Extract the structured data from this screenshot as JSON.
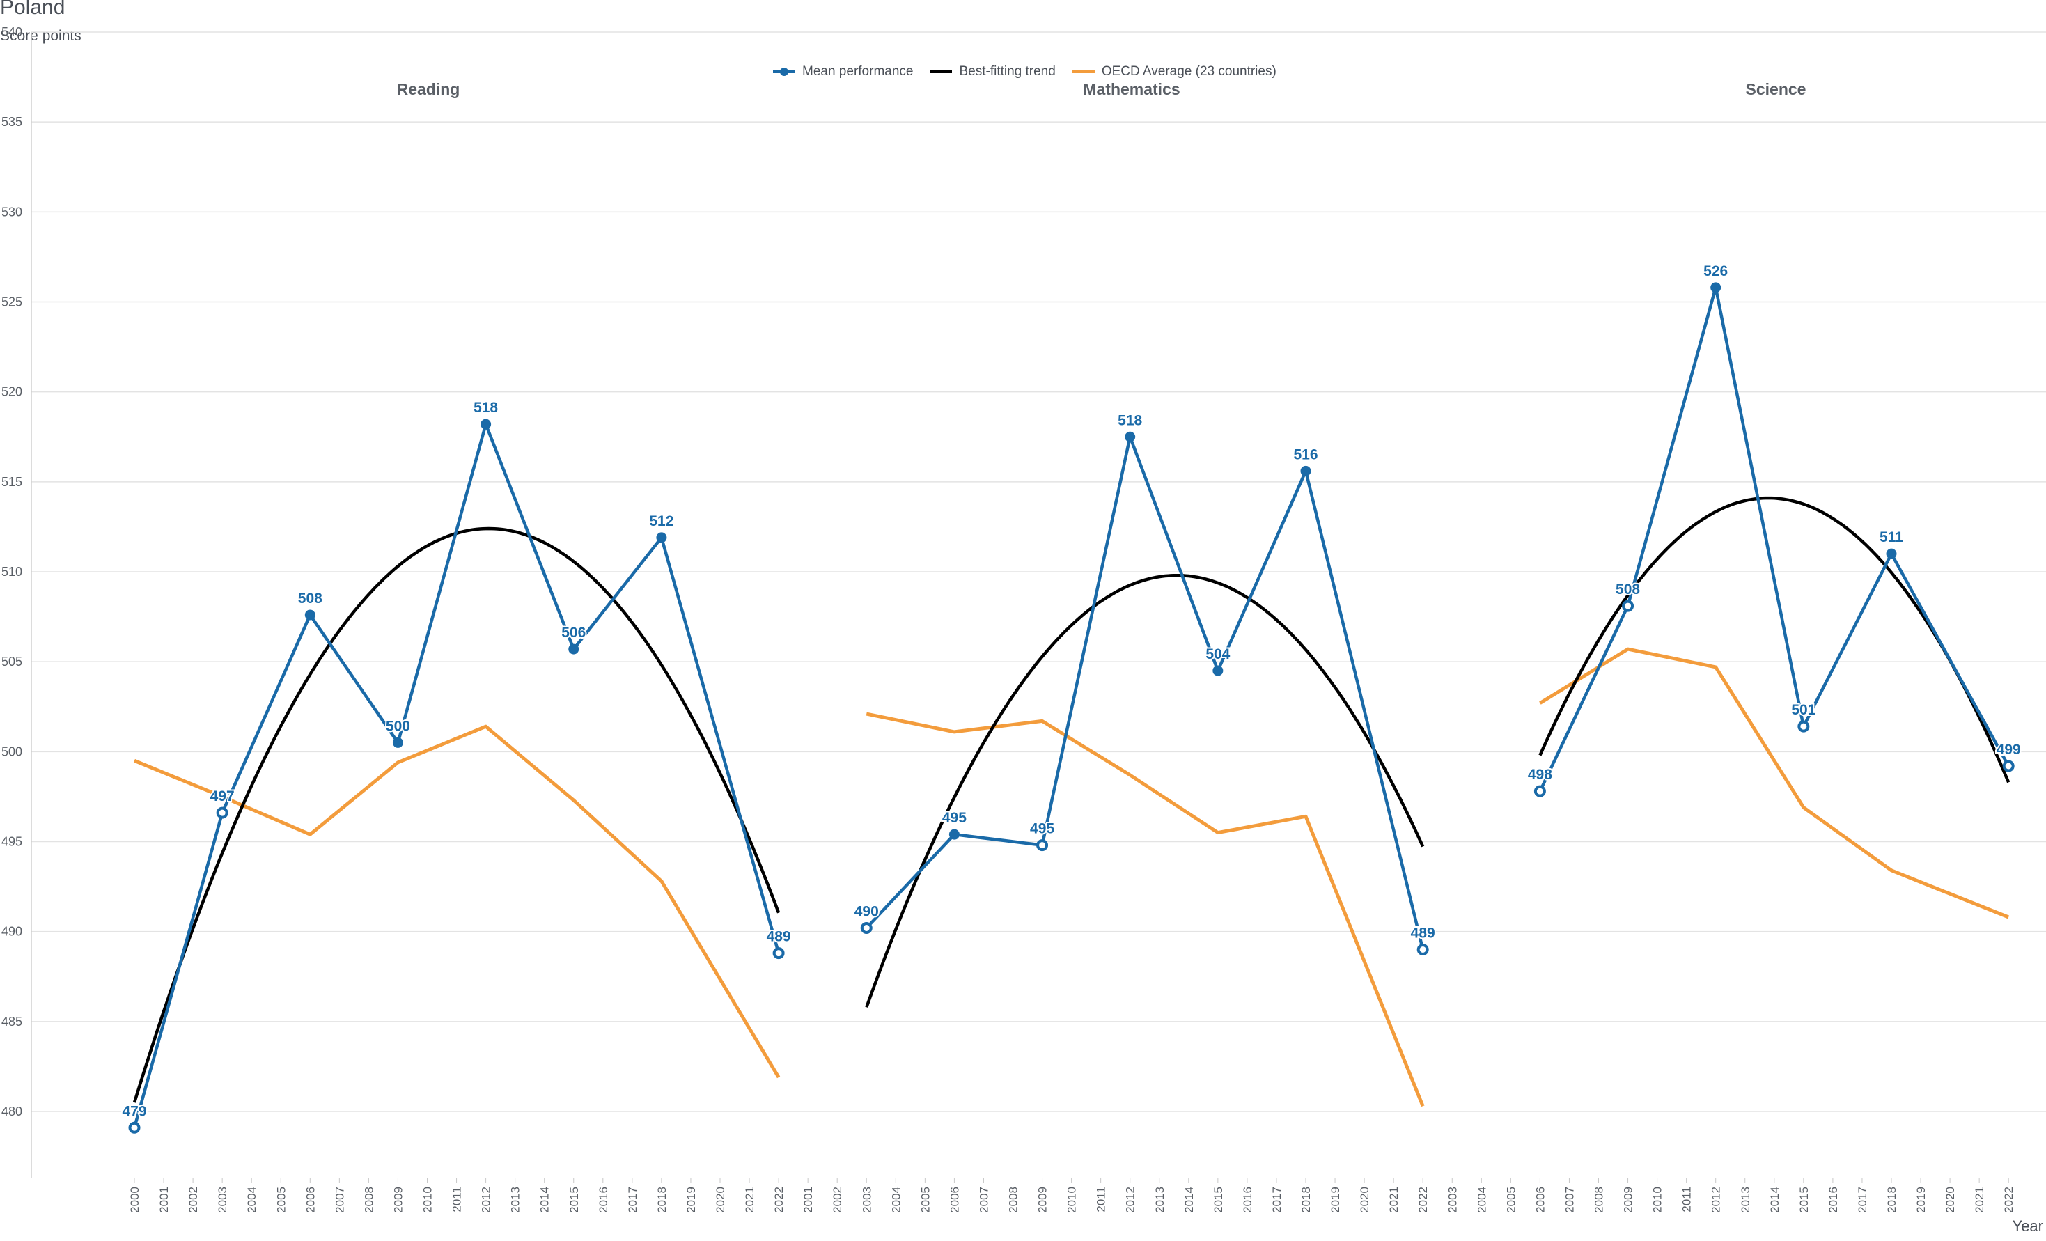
{
  "chart_data": {
    "type": "line",
    "title": "Poland",
    "ylabel": "Score points",
    "xlabel": "Year",
    "ylim": [
      477,
      540
    ],
    "yticks": [
      480,
      485,
      490,
      495,
      500,
      505,
      510,
      515,
      520,
      525,
      530,
      535,
      540
    ],
    "x_axis_years": [
      "2000",
      "2001",
      "2002",
      "2003",
      "2004",
      "2005",
      "2006",
      "2007",
      "2008",
      "2009",
      "2010",
      "2011",
      "2012",
      "2013",
      "2014",
      "2015",
      "2016",
      "2017",
      "2018",
      "2019",
      "2020",
      "2021",
      "2022",
      "2001",
      "2002",
      "2003",
      "2004",
      "2005",
      "2006",
      "2007",
      "2008",
      "2009",
      "2010",
      "2011",
      "2012",
      "2013",
      "2014",
      "2015",
      "2016",
      "2017",
      "2018",
      "2019",
      "2020",
      "2021",
      "2022",
      "2003",
      "2004",
      "2005",
      "2006",
      "2007",
      "2008",
      "2009",
      "2010",
      "2011",
      "2012",
      "2013",
      "2014",
      "2015",
      "2016",
      "2017",
      "2018",
      "2019",
      "2020",
      "2021",
      "2022"
    ],
    "legend": [
      {
        "name": "Mean performance",
        "color": "#1a6aa8"
      },
      {
        "name": "Best-fitting trend",
        "color": "#000000"
      },
      {
        "name": "OECD Average (23 countries)",
        "color": "#f39c3c"
      }
    ],
    "panels": [
      {
        "name": "Reading",
        "start_index": 0,
        "mean": [
          {
            "year": 2000,
            "value": 479.1,
            "label": "479",
            "marker": "open"
          },
          {
            "year": 2003,
            "value": 496.6,
            "label": "497",
            "marker": "open"
          },
          {
            "year": 2006,
            "value": 507.6,
            "label": "508",
            "marker": "filled"
          },
          {
            "year": 2009,
            "value": 500.5,
            "label": "500",
            "marker": "filled"
          },
          {
            "year": 2012,
            "value": 518.2,
            "label": "518",
            "marker": "filled"
          },
          {
            "year": 2015,
            "value": 505.7,
            "label": "506",
            "marker": "filled"
          },
          {
            "year": 2018,
            "value": 511.9,
            "label": "512",
            "marker": "filled"
          },
          {
            "year": 2022,
            "value": 488.8,
            "label": "489",
            "marker": "open"
          }
        ],
        "oecd": [
          {
            "year": 2000,
            "value": 499.5
          },
          {
            "year": 2003,
            "value": 497.5
          },
          {
            "year": 2006,
            "value": 495.4
          },
          {
            "year": 2009,
            "value": 499.4
          },
          {
            "year": 2012,
            "value": 501.4
          },
          {
            "year": 2015,
            "value": 497.3
          },
          {
            "year": 2018,
            "value": 492.8
          },
          {
            "year": 2022,
            "value": 481.9
          }
        ],
        "trend": {
          "from": 2000,
          "to": 2022,
          "peak_year": 2012.1,
          "peak_value": 512.4,
          "start_value": 480.5
        }
      },
      {
        "name": "Mathematics",
        "start_index": 25,
        "mean": [
          {
            "year": 2003,
            "value": 490.2,
            "label": "490",
            "marker": "open"
          },
          {
            "year": 2006,
            "value": 495.4,
            "label": "495",
            "marker": "filled"
          },
          {
            "year": 2009,
            "value": 494.8,
            "label": "495",
            "marker": "open"
          },
          {
            "year": 2012,
            "value": 517.5,
            "label": "518",
            "marker": "filled"
          },
          {
            "year": 2015,
            "value": 504.5,
            "label": "504",
            "marker": "filled"
          },
          {
            "year": 2018,
            "value": 515.6,
            "label": "516",
            "marker": "filled"
          },
          {
            "year": 2022,
            "value": 489.0,
            "label": "489",
            "marker": "open"
          }
        ],
        "oecd": [
          {
            "year": 2003,
            "value": 502.1
          },
          {
            "year": 2006,
            "value": 501.1
          },
          {
            "year": 2009,
            "value": 501.7
          },
          {
            "year": 2012,
            "value": 498.7
          },
          {
            "year": 2015,
            "value": 495.5
          },
          {
            "year": 2018,
            "value": 496.4
          },
          {
            "year": 2022,
            "value": 480.3
          }
        ],
        "trend": {
          "from": 2003,
          "to": 2022,
          "peak_year": 2013.6,
          "peak_value": 509.8,
          "start_value": 485.8
        }
      },
      {
        "name": "Science",
        "start_index": 48,
        "mean": [
          {
            "year": 2006,
            "value": 497.8,
            "label": "498",
            "marker": "open"
          },
          {
            "year": 2009,
            "value": 508.1,
            "label": "508",
            "marker": "open"
          },
          {
            "year": 2012,
            "value": 525.8,
            "label": "526",
            "marker": "filled"
          },
          {
            "year": 2015,
            "value": 501.4,
            "label": "501",
            "marker": "open"
          },
          {
            "year": 2018,
            "value": 511.0,
            "label": "511",
            "marker": "filled"
          },
          {
            "year": 2022,
            "value": 499.2,
            "label": "499",
            "marker": "open"
          }
        ],
        "oecd": [
          {
            "year": 2006,
            "value": 502.7
          },
          {
            "year": 2009,
            "value": 505.7
          },
          {
            "year": 2012,
            "value": 504.7
          },
          {
            "year": 2015,
            "value": 496.9
          },
          {
            "year": 2018,
            "value": 493.4
          },
          {
            "year": 2022,
            "value": 490.8
          }
        ],
        "trend": {
          "from": 2006,
          "to": 2022,
          "peak_year": 2013.8,
          "peak_value": 514.1,
          "start_value": 499.8
        }
      }
    ]
  }
}
